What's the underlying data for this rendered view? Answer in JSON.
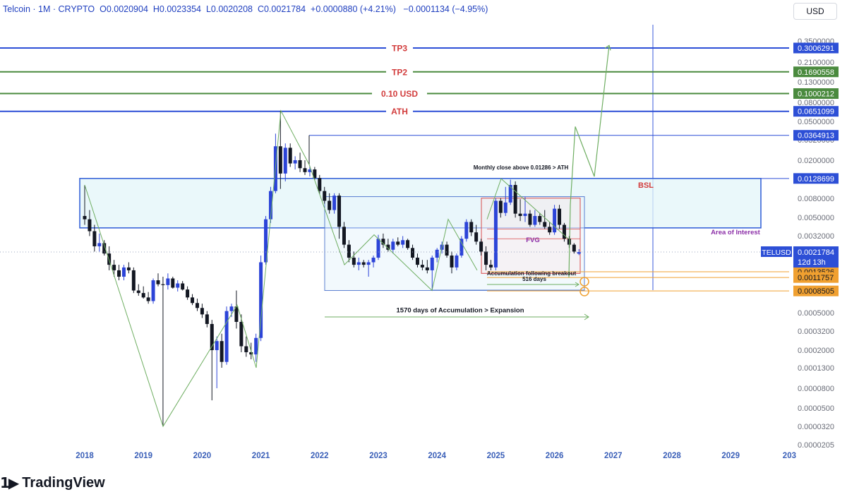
{
  "header": {
    "symbol": "Telcoin · 1M · CRYPTO",
    "o_label": "O",
    "o_value": "0.0020904",
    "h_label": "H",
    "h_value": "0.0023354",
    "l_label": "L",
    "l_value": "0.0020208",
    "c_label": "C",
    "c_value": "0.0021784",
    "change": "+0.0000880 (+4.21%)",
    "change2": "−0.0001134 (−4.95%)"
  },
  "currency_button": "USD",
  "branding": {
    "name": "TradingView"
  },
  "colors": {
    "up_candle": "#2c44d8",
    "down_candle": "#131722",
    "blue_level": "#2d4fd6",
    "green_level": "#4a8a3e",
    "annotation_red": "#d23c3c",
    "orange_level": "#f0a030",
    "projection": "#6fae62",
    "zone_fill": "#e3f5f8"
  },
  "chart_data": {
    "type": "candlestick",
    "symbol": "TELUSD",
    "timeframe": "1M",
    "y_scale": "log",
    "ylim": [
      2.05e-05,
      0.45
    ],
    "x_ticks": [
      "2018",
      "2019",
      "2020",
      "2021",
      "2022",
      "2023",
      "2024",
      "2025",
      "2026",
      "2027",
      "2028",
      "2029",
      "203"
    ],
    "y_ticks": [
      "0.3500000",
      "0.2100000",
      "0.1300000",
      "0.0800000",
      "0.0500000",
      "0.0320000",
      "0.0200000",
      "0.0080000",
      "0.0050000",
      "0.0032000",
      "0.0005000",
      "0.0003200",
      "0.0002000",
      "0.0001300",
      "0.0000800",
      "0.0000500",
      "0.0000320",
      "0.0000205"
    ],
    "levels": [
      {
        "label": "TP3",
        "price": 0.3006291,
        "price_label": "0.3006291",
        "color": "blue"
      },
      {
        "label": "TP2",
        "price": 0.1690558,
        "price_label": "0.1690558",
        "color": "green"
      },
      {
        "label": "0.10 USD",
        "price": 0.1000212,
        "price_label": "0.1000212",
        "color": "green"
      },
      {
        "label": "ATH",
        "price": 0.0651099,
        "price_label": "0.0651099",
        "color": "blue"
      },
      {
        "label": "",
        "price": 0.0364913,
        "price_label": "0.0364913",
        "color": "blue"
      },
      {
        "label": "",
        "price": 0.0128699,
        "price_label": "0.0128699",
        "color": "blue"
      },
      {
        "label": "",
        "price": 0.0013526,
        "price_label": "0.0013526",
        "color": "orange"
      },
      {
        "label": "",
        "price": 0.0011757,
        "price_label": "0.0011757",
        "color": "orange"
      },
      {
        "label": "",
        "price": 0.0008505,
        "price_label": "0.0008505",
        "color": "orange"
      }
    ],
    "current_price": {
      "ticker": "TELUSD",
      "price": 0.0021784,
      "price_label": "0.0021784",
      "countdown": "12d 13h"
    },
    "annotations": {
      "bsl": "BSL",
      "area_of_interest": "Area of Interest",
      "fvg": "FVG",
      "monthly_close": "Monthly close above 0.01286 > ATH",
      "accumulation_breakout": "Accumulation following breakout",
      "days_516": "516 days",
      "days_1570": "1570 days of Accumulation > Expansion"
    },
    "candles": [
      {
        "t": "2018-01",
        "o": 0.0052,
        "h": 0.011,
        "l": 0.0042,
        "c": 0.0048
      },
      {
        "t": "2018-02",
        "o": 0.0048,
        "h": 0.006,
        "l": 0.0032,
        "c": 0.0036
      },
      {
        "t": "2018-03",
        "o": 0.0036,
        "h": 0.0042,
        "l": 0.0022,
        "c": 0.0025
      },
      {
        "t": "2018-04",
        "o": 0.0025,
        "h": 0.0034,
        "l": 0.0022,
        "c": 0.0027
      },
      {
        "t": "2018-05",
        "o": 0.0027,
        "h": 0.0029,
        "l": 0.002,
        "c": 0.0021
      },
      {
        "t": "2018-06",
        "o": 0.0021,
        "h": 0.0025,
        "l": 0.0014,
        "c": 0.0016
      },
      {
        "t": "2018-07",
        "o": 0.0016,
        "h": 0.0018,
        "l": 0.0012,
        "c": 0.0014
      },
      {
        "t": "2018-08",
        "o": 0.0014,
        "h": 0.0016,
        "l": 0.0011,
        "c": 0.0012
      },
      {
        "t": "2018-09",
        "o": 0.0012,
        "h": 0.0016,
        "l": 0.0011,
        "c": 0.0015
      },
      {
        "t": "2018-10",
        "o": 0.0015,
        "h": 0.0017,
        "l": 0.0013,
        "c": 0.0014
      },
      {
        "t": "2018-11",
        "o": 0.0014,
        "h": 0.0015,
        "l": 0.0008,
        "c": 0.00085
      },
      {
        "t": "2018-12",
        "o": 0.00085,
        "h": 0.001,
        "l": 0.00075,
        "c": 0.0008
      },
      {
        "t": "2019-01",
        "o": 0.0008,
        "h": 0.00095,
        "l": 0.0007,
        "c": 0.00072
      },
      {
        "t": "2019-02",
        "o": 0.00072,
        "h": 0.00082,
        "l": 0.00062,
        "c": 0.00066
      },
      {
        "t": "2019-03",
        "o": 0.00066,
        "h": 0.00115,
        "l": 0.00062,
        "c": 0.0011
      },
      {
        "t": "2019-04",
        "o": 0.0011,
        "h": 0.0013,
        "l": 0.00095,
        "c": 0.001
      },
      {
        "t": "2019-05",
        "o": 0.001,
        "h": 0.0012,
        "l": 3.2e-05,
        "c": 0.00098
      },
      {
        "t": "2019-06",
        "o": 0.00098,
        "h": 0.0013,
        "l": 0.00088,
        "c": 0.00115
      },
      {
        "t": "2019-07",
        "o": 0.00115,
        "h": 0.0012,
        "l": 0.0009,
        "c": 0.00092
      },
      {
        "t": "2019-08",
        "o": 0.00092,
        "h": 0.0011,
        "l": 0.00083,
        "c": 0.00102
      },
      {
        "t": "2019-09",
        "o": 0.00102,
        "h": 0.00108,
        "l": 0.00085,
        "c": 0.00088
      },
      {
        "t": "2019-10",
        "o": 0.00088,
        "h": 0.00095,
        "l": 0.00068,
        "c": 0.00072
      },
      {
        "t": "2019-11",
        "o": 0.00072,
        "h": 0.00078,
        "l": 0.0006,
        "c": 0.00063
      },
      {
        "t": "2019-12",
        "o": 0.00063,
        "h": 0.0007,
        "l": 0.00052,
        "c": 0.00056
      },
      {
        "t": "2020-01",
        "o": 0.00056,
        "h": 0.00062,
        "l": 0.00044,
        "c": 0.00048
      },
      {
        "t": "2020-02",
        "o": 0.00048,
        "h": 0.00052,
        "l": 0.00035,
        "c": 0.00038
      },
      {
        "t": "2020-03",
        "o": 0.00038,
        "h": 0.00042,
        "l": 6e-05,
        "c": 0.0002
      },
      {
        "t": "2020-04",
        "o": 0.0002,
        "h": 0.00028,
        "l": 8e-05,
        "c": 0.00025
      },
      {
        "t": "2020-05",
        "o": 0.00025,
        "h": 0.0003,
        "l": 0.00013,
        "c": 0.00015
      },
      {
        "t": "2020-06",
        "o": 0.00015,
        "h": 0.00058,
        "l": 0.00014,
        "c": 0.00052
      },
      {
        "t": "2020-07",
        "o": 0.00052,
        "h": 0.00062,
        "l": 0.00045,
        "c": 0.00058
      },
      {
        "t": "2020-08",
        "o": 0.00058,
        "h": 0.00085,
        "l": 0.00034,
        "c": 0.0004
      },
      {
        "t": "2020-09",
        "o": 0.0004,
        "h": 0.00048,
        "l": 0.00019,
        "c": 0.00022
      },
      {
        "t": "2020-10",
        "o": 0.00022,
        "h": 0.00028,
        "l": 0.00017,
        "c": 0.00019
      },
      {
        "t": "2020-11",
        "o": 0.00019,
        "h": 0.00024,
        "l": 0.00016,
        "c": 0.00018
      },
      {
        "t": "2020-12",
        "o": 0.00018,
        "h": 0.0003,
        "l": 0.00015,
        "c": 0.00027
      },
      {
        "t": "2021-01",
        "o": 0.00027,
        "h": 0.002,
        "l": 0.00025,
        "c": 0.0017
      },
      {
        "t": "2021-02",
        "o": 0.0017,
        "h": 0.0052,
        "l": 0.0016,
        "c": 0.0048
      },
      {
        "t": "2021-03",
        "o": 0.0048,
        "h": 0.0105,
        "l": 0.0044,
        "c": 0.0095
      },
      {
        "t": "2021-04",
        "o": 0.0095,
        "h": 0.038,
        "l": 0.009,
        "c": 0.028
      },
      {
        "t": "2021-05",
        "o": 0.028,
        "h": 0.066,
        "l": 0.01,
        "c": 0.0145
      },
      {
        "t": "2021-06",
        "o": 0.0145,
        "h": 0.03,
        "l": 0.012,
        "c": 0.027
      },
      {
        "t": "2021-07",
        "o": 0.027,
        "h": 0.03,
        "l": 0.017,
        "c": 0.0185
      },
      {
        "t": "2021-08",
        "o": 0.0185,
        "h": 0.022,
        "l": 0.016,
        "c": 0.02
      },
      {
        "t": "2021-09",
        "o": 0.02,
        "h": 0.024,
        "l": 0.015,
        "c": 0.0165
      },
      {
        "t": "2021-10",
        "o": 0.0165,
        "h": 0.02,
        "l": 0.014,
        "c": 0.015
      },
      {
        "t": "2021-11",
        "o": 0.015,
        "h": 0.0175,
        "l": 0.0135,
        "c": 0.016
      },
      {
        "t": "2021-12",
        "o": 0.016,
        "h": 0.017,
        "l": 0.0125,
        "c": 0.013
      },
      {
        "t": "2022-01",
        "o": 0.013,
        "h": 0.014,
        "l": 0.0088,
        "c": 0.0095
      },
      {
        "t": "2022-02",
        "o": 0.0095,
        "h": 0.0105,
        "l": 0.007,
        "c": 0.0075
      },
      {
        "t": "2022-03",
        "o": 0.0075,
        "h": 0.009,
        "l": 0.0055,
        "c": 0.006
      },
      {
        "t": "2022-04",
        "o": 0.006,
        "h": 0.009,
        "l": 0.0055,
        "c": 0.0085
      },
      {
        "t": "2022-05",
        "o": 0.0085,
        "h": 0.009,
        "l": 0.003,
        "c": 0.004
      },
      {
        "t": "2022-06",
        "o": 0.004,
        "h": 0.0045,
        "l": 0.0024,
        "c": 0.0026
      },
      {
        "t": "2022-07",
        "o": 0.0026,
        "h": 0.0029,
        "l": 0.0017,
        "c": 0.0019
      },
      {
        "t": "2022-08",
        "o": 0.0019,
        "h": 0.0022,
        "l": 0.0015,
        "c": 0.0016
      },
      {
        "t": "2022-09",
        "o": 0.0016,
        "h": 0.0019,
        "l": 0.0014,
        "c": 0.0017
      },
      {
        "t": "2022-10",
        "o": 0.0017,
        "h": 0.0018,
        "l": 0.0015,
        "c": 0.0016
      },
      {
        "t": "2022-11",
        "o": 0.0016,
        "h": 0.0018,
        "l": 0.0012,
        "c": 0.0017
      },
      {
        "t": "2022-12",
        "o": 0.0017,
        "h": 0.002,
        "l": 0.0015,
        "c": 0.0019
      },
      {
        "t": "2023-01",
        "o": 0.0019,
        "h": 0.0033,
        "l": 0.0018,
        "c": 0.003
      },
      {
        "t": "2023-02",
        "o": 0.003,
        "h": 0.0034,
        "l": 0.0024,
        "c": 0.0026
      },
      {
        "t": "2023-03",
        "o": 0.0026,
        "h": 0.003,
        "l": 0.0022,
        "c": 0.0023
      },
      {
        "t": "2023-04",
        "o": 0.0023,
        "h": 0.003,
        "l": 0.0021,
        "c": 0.0028
      },
      {
        "t": "2023-05",
        "o": 0.0028,
        "h": 0.0031,
        "l": 0.0025,
        "c": 0.0026
      },
      {
        "t": "2023-06",
        "o": 0.0026,
        "h": 0.0032,
        "l": 0.0024,
        "c": 0.0029
      },
      {
        "t": "2023-07",
        "o": 0.0029,
        "h": 0.003,
        "l": 0.0023,
        "c": 0.0024
      },
      {
        "t": "2023-08",
        "o": 0.0024,
        "h": 0.0026,
        "l": 0.0018,
        "c": 0.0019
      },
      {
        "t": "2023-09",
        "o": 0.0019,
        "h": 0.0021,
        "l": 0.0015,
        "c": 0.0016
      },
      {
        "t": "2023-10",
        "o": 0.0016,
        "h": 0.0018,
        "l": 0.0014,
        "c": 0.0015
      },
      {
        "t": "2023-11",
        "o": 0.0015,
        "h": 0.0018,
        "l": 0.0013,
        "c": 0.0014
      },
      {
        "t": "2023-12",
        "o": 0.0014,
        "h": 0.002,
        "l": 0.00085,
        "c": 0.0019
      },
      {
        "t": "2024-01",
        "o": 0.0019,
        "h": 0.0024,
        "l": 0.0017,
        "c": 0.0023
      },
      {
        "t": "2024-02",
        "o": 0.0023,
        "h": 0.0028,
        "l": 0.0021,
        "c": 0.0026
      },
      {
        "t": "2024-03",
        "o": 0.0026,
        "h": 0.0028,
        "l": 0.0019,
        "c": 0.002
      },
      {
        "t": "2024-04",
        "o": 0.002,
        "h": 0.0022,
        "l": 0.0013,
        "c": 0.0015
      },
      {
        "t": "2024-05",
        "o": 0.0015,
        "h": 0.0021,
        "l": 0.0014,
        "c": 0.002
      },
      {
        "t": "2024-06",
        "o": 0.002,
        "h": 0.0032,
        "l": 0.0019,
        "c": 0.003
      },
      {
        "t": "2024-07",
        "o": 0.003,
        "h": 0.0048,
        "l": 0.0028,
        "c": 0.0045
      },
      {
        "t": "2024-08",
        "o": 0.0045,
        "h": 0.0048,
        "l": 0.0032,
        "c": 0.0035
      },
      {
        "t": "2024-09",
        "o": 0.0035,
        "h": 0.0042,
        "l": 0.0026,
        "c": 0.0028
      },
      {
        "t": "2024-10",
        "o": 0.0028,
        "h": 0.003,
        "l": 0.002,
        "c": 0.0022
      },
      {
        "t": "2024-11",
        "o": 0.0022,
        "h": 0.0025,
        "l": 0.0014,
        "c": 0.0016
      },
      {
        "t": "2024-12",
        "o": 0.0016,
        "h": 0.0018,
        "l": 0.0014,
        "c": 0.0015
      },
      {
        "t": "2025-01",
        "o": 0.0015,
        "h": 0.008,
        "l": 0.0014,
        "c": 0.0075
      },
      {
        "t": "2025-02",
        "o": 0.0075,
        "h": 0.008,
        "l": 0.005,
        "c": 0.0056
      },
      {
        "t": "2025-03",
        "o": 0.0056,
        "h": 0.0105,
        "l": 0.0052,
        "c": 0.0072
      },
      {
        "t": "2025-04",
        "o": 0.0072,
        "h": 0.0125,
        "l": 0.0068,
        "c": 0.011
      },
      {
        "t": "2025-05",
        "o": 0.011,
        "h": 0.012,
        "l": 0.005,
        "c": 0.0055
      },
      {
        "t": "2025-06",
        "o": 0.0055,
        "h": 0.0078,
        "l": 0.0046,
        "c": 0.0052
      },
      {
        "t": "2025-07",
        "o": 0.0052,
        "h": 0.0082,
        "l": 0.0045,
        "c": 0.0055
      },
      {
        "t": "2025-08",
        "o": 0.0055,
        "h": 0.006,
        "l": 0.004,
        "c": 0.0042
      },
      {
        "t": "2025-09",
        "o": 0.0042,
        "h": 0.006,
        "l": 0.004,
        "c": 0.0052
      },
      {
        "t": "2025-10",
        "o": 0.0052,
        "h": 0.0056,
        "l": 0.0042,
        "c": 0.0045
      },
      {
        "t": "2025-11",
        "o": 0.0045,
        "h": 0.006,
        "l": 0.0038,
        "c": 0.004
      },
      {
        "t": "2025-12",
        "o": 0.004,
        "h": 0.0045,
        "l": 0.0033,
        "c": 0.0035
      },
      {
        "t": "2026-01",
        "o": 0.0035,
        "h": 0.0068,
        "l": 0.0033,
        "c": 0.0062
      },
      {
        "t": "2026-02",
        "o": 0.0062,
        "h": 0.0068,
        "l": 0.0038,
        "c": 0.0042
      },
      {
        "t": "2026-03",
        "o": 0.0042,
        "h": 0.0044,
        "l": 0.0028,
        "c": 0.003
      },
      {
        "t": "2026-04",
        "o": 0.003,
        "h": 0.0032,
        "l": 0.0024,
        "c": 0.0026
      },
      {
        "t": "2026-05",
        "o": 0.0026,
        "h": 0.0027,
        "l": 0.0021,
        "c": 0.0022
      },
      {
        "t": "2026-06",
        "o": 0.0020904,
        "h": 0.0023354,
        "l": 0.0020208,
        "c": 0.0021784
      }
    ],
    "projection_path": [
      {
        "t": "2026-06",
        "p": 0.0011757
      },
      {
        "t": "2026-06",
        "p": 0.0068
      },
      {
        "t": "2026-07",
        "p": 0.045
      },
      {
        "t": "2026-08",
        "p": 0.0135
      },
      {
        "t": "2026-09",
        "p": 0.32
      }
    ]
  }
}
